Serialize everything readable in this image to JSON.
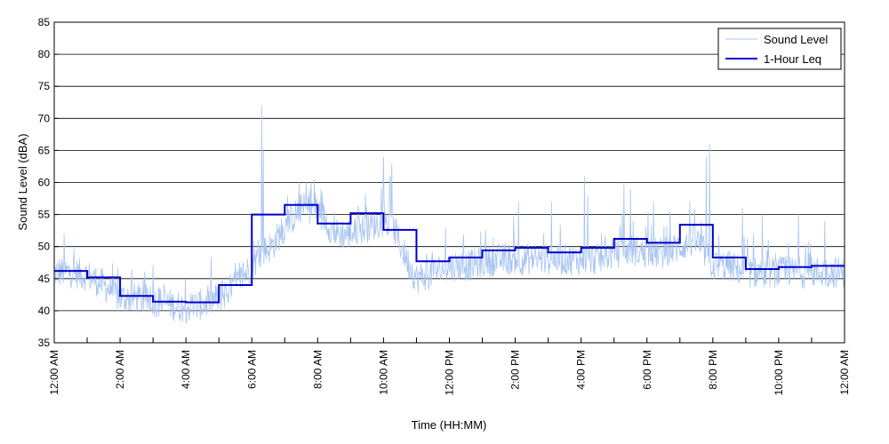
{
  "chart_data": {
    "type": "line",
    "title": "",
    "xlabel": "Time (HH:MM)",
    "ylabel": "Sound Level (dBA)",
    "ylim": [
      35,
      85
    ],
    "yticks": [
      35,
      40,
      45,
      50,
      55,
      60,
      65,
      70,
      75,
      80,
      85
    ],
    "xlim_hours": [
      0,
      24
    ],
    "xtick_labels": [
      {
        "hour": 0,
        "label": "12:00 AM"
      },
      {
        "hour": 2,
        "label": "2:00 AM"
      },
      {
        "hour": 4,
        "label": "4:00 AM"
      },
      {
        "hour": 6,
        "label": "6:00 AM"
      },
      {
        "hour": 8,
        "label": "8:00 AM"
      },
      {
        "hour": 10,
        "label": "10:00 AM"
      },
      {
        "hour": 12,
        "label": "12:00 PM"
      },
      {
        "hour": 14,
        "label": "2:00 PM"
      },
      {
        "hour": 16,
        "label": "4:00 PM"
      },
      {
        "hour": 18,
        "label": "6:00 PM"
      },
      {
        "hour": 20,
        "label": "8:00 PM"
      },
      {
        "hour": 22,
        "label": "10:00 PM"
      },
      {
        "hour": 24,
        "label": "12:00 AM"
      }
    ],
    "minor_tick_hours": [
      1,
      3,
      5,
      7,
      9,
      11,
      13,
      15,
      17,
      19,
      21,
      23
    ],
    "grid": "horizontal",
    "legend": "top-right",
    "series": [
      {
        "name": "Sound Level",
        "color": "#a8c4f0",
        "profile": [
          [
            0,
            46
          ],
          [
            0.5,
            46
          ],
          [
            1,
            45.5
          ],
          [
            1.5,
            44
          ],
          [
            2,
            42
          ],
          [
            2.5,
            42
          ],
          [
            3,
            41.5
          ],
          [
            3.5,
            41
          ],
          [
            4,
            40.5
          ],
          [
            4.5,
            41
          ],
          [
            5,
            42
          ],
          [
            5.5,
            44
          ],
          [
            6,
            47
          ],
          [
            6.3,
            49
          ],
          [
            6.6,
            50
          ],
          [
            7,
            53
          ],
          [
            7.5,
            56
          ],
          [
            8,
            56
          ],
          [
            8.5,
            52
          ],
          [
            9,
            52
          ],
          [
            9.5,
            53
          ],
          [
            10,
            54
          ],
          [
            10.3,
            53
          ],
          [
            10.7,
            48
          ],
          [
            11,
            45
          ],
          [
            11.5,
            46
          ],
          [
            12,
            47
          ],
          [
            12.5,
            47
          ],
          [
            13,
            47.5
          ],
          [
            13.5,
            48
          ],
          [
            14,
            48
          ],
          [
            14.5,
            48
          ],
          [
            15,
            48
          ],
          [
            15.5,
            48
          ],
          [
            16,
            48
          ],
          [
            16.5,
            48
          ],
          [
            17,
            49
          ],
          [
            17.5,
            49.5
          ],
          [
            18,
            49
          ],
          [
            18.5,
            49
          ],
          [
            19,
            50
          ],
          [
            19.5,
            51
          ],
          [
            20,
            47
          ],
          [
            20.5,
            47
          ],
          [
            21,
            46
          ],
          [
            21.5,
            46
          ],
          [
            22,
            46
          ],
          [
            22.5,
            46
          ],
          [
            23,
            46
          ],
          [
            23.5,
            46
          ],
          [
            24,
            46
          ]
        ],
        "spikes": [
          [
            6.3,
            72
          ],
          [
            6.35,
            65
          ],
          [
            7.8,
            60
          ],
          [
            8.1,
            59
          ],
          [
            10,
            64
          ],
          [
            10.2,
            61
          ],
          [
            10.25,
            63
          ],
          [
            14.1,
            57
          ],
          [
            15.1,
            57
          ],
          [
            16.1,
            61
          ],
          [
            16.2,
            58
          ],
          [
            17.3,
            60
          ],
          [
            17.5,
            59
          ],
          [
            18.2,
            57
          ],
          [
            19.3,
            57
          ],
          [
            19.8,
            64
          ],
          [
            19.9,
            66
          ],
          [
            20.9,
            56
          ],
          [
            21.5,
            55
          ],
          [
            22.6,
            55
          ],
          [
            23.4,
            54
          ],
          [
            0.3,
            52
          ],
          [
            4.7,
            43
          ],
          [
            5.1,
            45
          ]
        ]
      },
      {
        "name": "1-Hour Leq",
        "color": "#0000cc",
        "hours": [
          0,
          1,
          2,
          3,
          4,
          5,
          6,
          7,
          8,
          9,
          10,
          11,
          12,
          13,
          14,
          15,
          16,
          17,
          18,
          19,
          20,
          21,
          22,
          23
        ],
        "values": [
          46.2,
          45.2,
          42.3,
          41.4,
          41.3,
          44.0,
          55.0,
          56.5,
          53.6,
          55.2,
          52.6,
          47.7,
          48.3,
          49.4,
          49.8,
          49.1,
          49.8,
          51.2,
          50.6,
          53.4,
          48.3,
          46.5,
          46.8,
          47.0
        ]
      }
    ]
  }
}
